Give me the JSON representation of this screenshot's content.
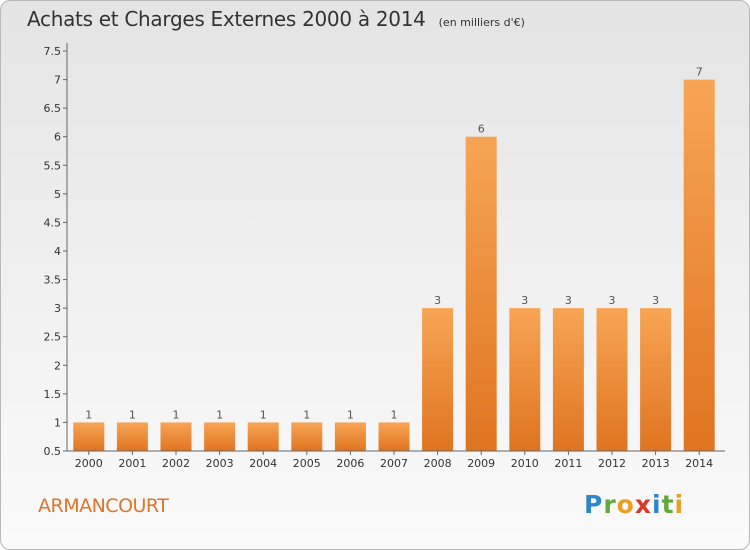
{
  "header": {
    "title": "Achats et Charges Externes 2000 à 2014",
    "subtitle": "(en milliers d'€)"
  },
  "footer": {
    "city": "ARMANCOURT",
    "logo": "Proxiti",
    "logo_letters": [
      "P",
      "r",
      "o",
      "x",
      "i",
      "t",
      "i"
    ]
  },
  "colors": {
    "bar_light": "#f7a555",
    "bar_dark": "#e07420",
    "axis": "#666666",
    "grid": "#cccccc"
  },
  "chart_data": {
    "type": "bar",
    "title": "Achats et Charges Externes 2000 à 2014",
    "subtitle": "(en milliers d'€)",
    "xlabel": "",
    "ylabel": "",
    "categories": [
      "2000",
      "2001",
      "2002",
      "2003",
      "2004",
      "2005",
      "2006",
      "2007",
      "2008",
      "2009",
      "2010",
      "2011",
      "2012",
      "2013",
      "2014"
    ],
    "values": [
      1,
      1,
      1,
      1,
      1,
      1,
      1,
      1,
      3,
      6,
      3,
      3,
      3,
      3,
      7
    ],
    "data_labels": [
      "1",
      "1",
      "1",
      "1",
      "1",
      "1",
      "1",
      "1",
      "3",
      "6",
      "3",
      "3",
      "3",
      "3",
      "7"
    ],
    "ylim": [
      0.5,
      7.5
    ],
    "yticks": [
      0.5,
      1,
      1.5,
      2,
      2.5,
      3,
      3.5,
      4,
      4.5,
      5,
      5.5,
      6,
      6.5,
      7,
      7.5
    ],
    "ytick_labels": [
      "0.5",
      "1",
      "1.5",
      "2",
      "2.5",
      "3",
      "3.5",
      "4",
      "4.5",
      "5",
      "5.5",
      "6",
      "6.5",
      "7",
      "7.5"
    ],
    "grid": false,
    "legend": "none"
  }
}
